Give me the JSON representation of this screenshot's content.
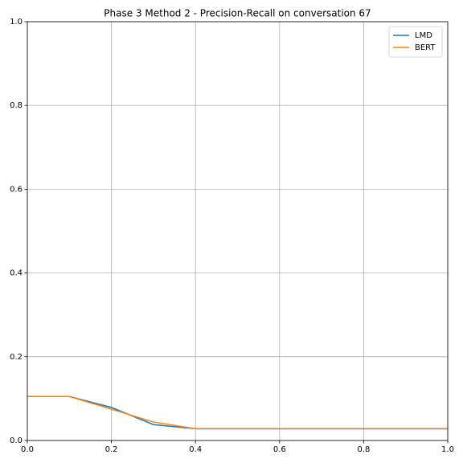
{
  "chart_data": {
    "type": "line",
    "title": "Phase 3 Method 2 - Precision-Recall on conversation 67",
    "x": [
      0.0,
      0.1,
      0.2,
      0.3,
      0.4,
      0.5,
      0.6,
      0.7,
      0.8,
      0.9,
      1.0
    ],
    "series": [
      {
        "name": "LMD",
        "color": "#1f77b4",
        "values": [
          0.105,
          0.105,
          0.079,
          0.038,
          0.028,
          0.028,
          0.028,
          0.028,
          0.028,
          0.028,
          0.028
        ]
      },
      {
        "name": "BERT",
        "color": "#ff7f0e",
        "values": [
          0.105,
          0.105,
          0.075,
          0.044,
          0.028,
          0.028,
          0.028,
          0.028,
          0.028,
          0.028,
          0.028
        ]
      }
    ],
    "xlim": [
      0,
      1
    ],
    "ylim": [
      0,
      1
    ],
    "xticks": [
      {
        "value": 0,
        "label": "0.0"
      },
      0.2,
      0.4,
      0.6,
      0.8,
      {
        "value": 1,
        "label": "1.0"
      }
    ],
    "yticks": [
      {
        "value": 0,
        "label": "0.0"
      },
      0.2,
      0.4,
      0.6,
      0.8,
      {
        "value": 1,
        "label": "1.0"
      }
    ],
    "grid": true,
    "legend": "upper-right"
  }
}
